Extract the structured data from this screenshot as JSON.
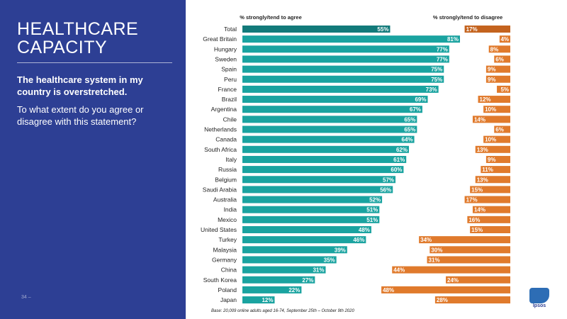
{
  "panel": {
    "title": "HEALTHCARE CAPACITY",
    "statement": "The healthcare system in my country is overstretched.",
    "question": "To what extent do you agree or disagree with this statement?",
    "page_number": "34 ‒"
  },
  "footer": {
    "base_note": "Base: 20,009 online adults aged 16-74, September 25th – October 9th 2020",
    "logo_text": "Ipsos"
  },
  "colors": {
    "panel_bg": "#2d3f94",
    "agree": "#1aa3a0",
    "agree_total": "#127a7a",
    "disagree": "#e07a2c",
    "disagree_total": "#c4631e"
  },
  "chart_data": {
    "type": "bar",
    "orientation": "horizontal",
    "title": "HEALTHCARE CAPACITY",
    "xlabel": "",
    "ylabel": "",
    "series_headers": [
      "% strongly/tend to agree",
      "% strongly/tend to disagree"
    ],
    "categories": [
      "Total",
      "Great Britain",
      "Hungary",
      "Sweden",
      "Spain",
      "Peru",
      "France",
      "Brazil",
      "Argentina",
      "Chile",
      "Netherlands",
      "Canada",
      "South Africa",
      "Italy",
      "Russia",
      "Belgium",
      "Saudi Arabia",
      "Australia",
      "India",
      "Mexico",
      "United States",
      "Turkey",
      "Malaysia",
      "Germany",
      "China",
      "South Korea",
      "Poland",
      "Japan"
    ],
    "series": [
      {
        "name": "% strongly/tend to agree",
        "values": [
          55,
          81,
          77,
          77,
          75,
          75,
          73,
          69,
          67,
          65,
          65,
          64,
          62,
          61,
          60,
          57,
          56,
          52,
          51,
          51,
          48,
          46,
          39,
          35,
          31,
          27,
          22,
          12
        ]
      },
      {
        "name": "% strongly/tend to disagree",
        "values": [
          17,
          4,
          8,
          6,
          9,
          9,
          5,
          12,
          10,
          14,
          6,
          10,
          13,
          9,
          11,
          13,
          15,
          17,
          14,
          16,
          15,
          34,
          30,
          31,
          44,
          24,
          48,
          28
        ]
      }
    ],
    "value_suffix": "%",
    "xlim": [
      0,
      100
    ]
  }
}
